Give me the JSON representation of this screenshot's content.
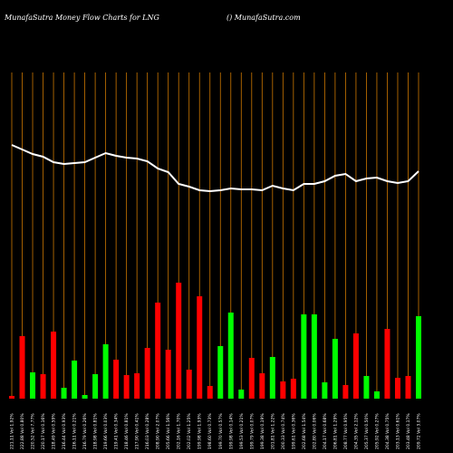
{
  "chart_data": {
    "type": "bar",
    "title": "MunafaSutra  Money Flow  Charts for LNG",
    "subtitle": "() MunafaSutra.com",
    "categories": [
      "221.11 Vol 1.92%",
      "222.88 Vol 0.80%",
      "220.52 Vol 7.77%",
      "220.17 Vol 0.16%",
      "218.49 Vol 0.59%",
      "216.44 Vol 0.93%",
      "216.11 Vol 0.21%",
      "216.79 Vol 0.26%",
      "218.98 Vol 0.81%",
      "219.66 Vol 0.03%",
      "219.41 Vol 0.34%",
      "218.46 Vol 0.81%",
      "217.90 Vol 0.41%",
      "216.03 Vol 0.28%",
      "208.90 Vol 2.07%",
      "205.66 Vol 1.56%",
      "202.16 Vol 1.70%",
      "202.02 Vol 1.25%",
      "199.98 Vol 1.93%",
      "198.60 Vol 0.73%",
      "199.70 Vol 0.57%",
      "199.98 Vol 0.14%",
      "199.53 Vol 0.21%",
      "199.79 Vol 0.07%",
      "199.38 Vol 0.19%",
      "201.81 Vol 1.22%",
      "200.33 Vol 0.74%",
      "199.61 Vol 0.36%",
      "202.68 Vol 1.54%",
      "202.80 Vol 0.06%",
      "204.17 Vol 0.68%",
      "206.81 Vol 1.29%",
      "208.77 Vol 0.95%",
      "204.35 Vol 2.12%",
      "205.37 Vol 0.50%",
      "205.92 Vol 0.27%",
      "204.38 Vol 0.75%",
      "203.13 Vol 0.61%",
      "203.48 Vol 0.17%",
      "209.72 Vol 3.07%"
    ],
    "values": [
      3,
      69,
      29,
      27,
      74,
      12,
      42,
      4,
      27,
      60,
      43,
      26,
      28,
      56,
      106,
      54,
      128,
      32,
      113,
      14,
      58,
      95,
      10,
      45,
      28,
      46,
      19,
      22,
      93,
      93,
      18,
      66,
      15,
      72,
      25,
      8,
      77,
      23,
      25,
      91
    ],
    "bar_colors": [
      "#ff0000",
      "#ff0000",
      "#00ff00",
      "#ff0000",
      "#ff0000",
      "#00ff00",
      "#00ff00",
      "#00ff00",
      "#00ff00",
      "#00ff00",
      "#ff0000",
      "#ff0000",
      "#ff0000",
      "#ff0000",
      "#ff0000",
      "#ff0000",
      "#ff0000",
      "#ff0000",
      "#ff0000",
      "#ff0000",
      "#00ff00",
      "#00ff00",
      "#00ff00",
      "#ff0000",
      "#ff0000",
      "#00ff00",
      "#ff0000",
      "#ff0000",
      "#00ff00",
      "#00ff00",
      "#00ff00",
      "#00ff00",
      "#ff0000",
      "#ff0000",
      "#00ff00",
      "#00ff00",
      "#ff0000",
      "#ff0000",
      "#ff0000",
      "#00ff00"
    ],
    "line_values": [
      280,
      275,
      270,
      267,
      261,
      259,
      260,
      261,
      266,
      271,
      268,
      266,
      265,
      262,
      254,
      250,
      237,
      234,
      230,
      229,
      230,
      232,
      231,
      231,
      230,
      235,
      232,
      230,
      237,
      237,
      240,
      246,
      248,
      240,
      243,
      244,
      240,
      238,
      240,
      251
    ],
    "line_color": "#ffffff",
    "grid_color": "#cc7700"
  }
}
